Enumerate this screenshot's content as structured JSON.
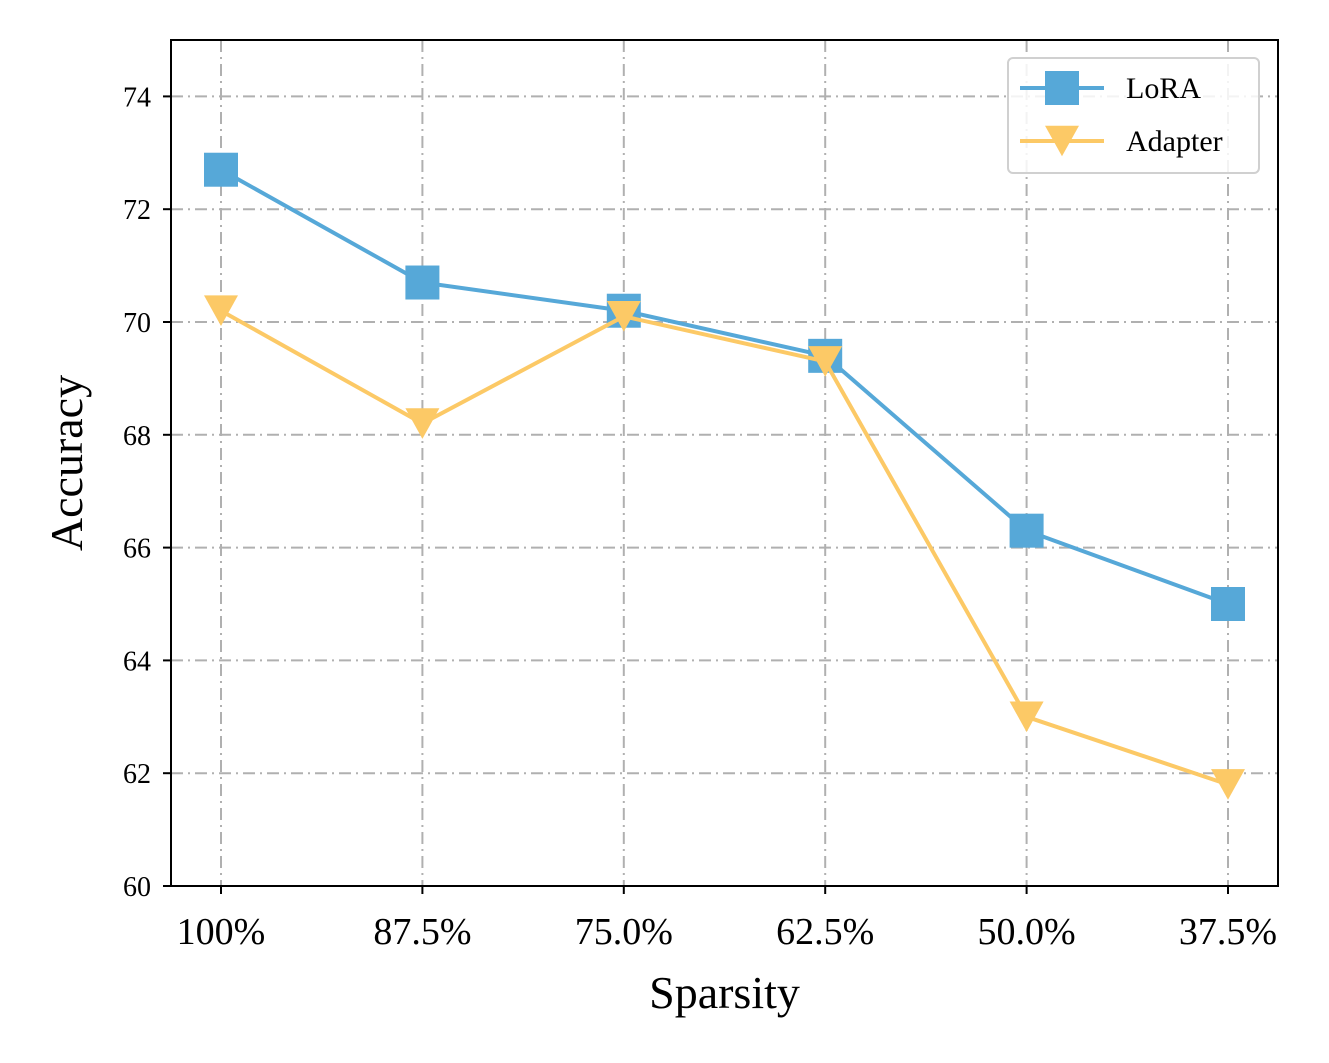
{
  "chart_data": {
    "type": "line",
    "categories": [
      "100%",
      "87.5%",
      "75.0%",
      "62.5%",
      "50.0%",
      "37.5%"
    ],
    "series": [
      {
        "name": "LoRA",
        "values": [
          72.7,
          70.7,
          70.2,
          69.4,
          66.3,
          65.0
        ],
        "color": "#56a8d8",
        "marker": "square"
      },
      {
        "name": "Adapter",
        "values": [
          70.2,
          68.2,
          70.1,
          69.3,
          63.0,
          61.8
        ],
        "color": "#fcc966",
        "marker": "triangle-down"
      }
    ],
    "title": "",
    "xlabel": "Sparsity",
    "ylabel": "Accuracy",
    "ylim": [
      60,
      75
    ],
    "yticks": [
      60,
      62,
      64,
      66,
      68,
      70,
      72,
      74
    ],
    "grid": true,
    "grid_style": "dash-dot",
    "legend_position": "top-right"
  }
}
